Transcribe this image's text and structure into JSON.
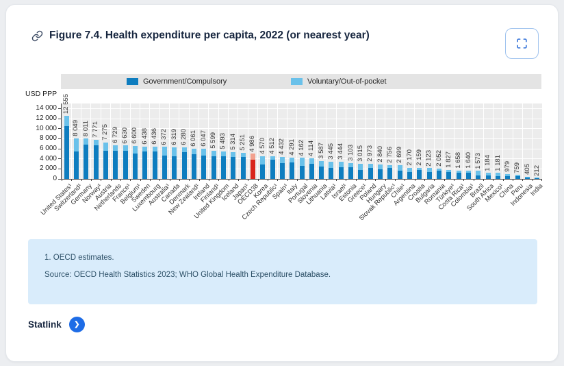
{
  "page": {
    "title": "Figure 7.4. Health expenditure per capita, 2022 (or nearest year)",
    "statlink_label": "Statlink",
    "notes": [
      "1. OECD estimates.",
      "Source: OECD Health Statistics 2023; WHO Global Health Expenditure Database."
    ]
  },
  "chart_data": {
    "type": "bar",
    "stacked": true,
    "title": "Health expenditure per capita, 2022 (or nearest year)",
    "unit_label": "USD PPP",
    "xlabel": "",
    "ylabel": "USD PPP",
    "legend_position": "top",
    "grid": true,
    "ylim": [
      0,
      15000
    ],
    "yticks": [
      0,
      2000,
      4000,
      6000,
      8000,
      10000,
      12000,
      14000
    ],
    "ytick_labels": [
      "0",
      "2 000",
      "4 000",
      "6 000",
      "8 000",
      "10 000",
      "12 000",
      "14 000"
    ],
    "categories": [
      "United States¹",
      "Switzerland¹",
      "Germany",
      "Norway¹",
      "Austria",
      "Netherlands",
      "France¹",
      "Belgium¹",
      "Sweden",
      "Luxembourg",
      "Australia¹",
      "Canada",
      "Denmark",
      "New Zealand¹",
      "Ireland",
      "Finland¹",
      "United Kingdom",
      "Iceland",
      "Japan¹",
      "OECD38",
      "Korea",
      "Czech Republic¹",
      "Spain¹",
      "Italy",
      "Portugal",
      "Slovenia",
      "Lithuania",
      "Latvia¹",
      "Israel¹",
      "Estonia",
      "Greece¹",
      "Poland",
      "Hungary",
      "Slovak Republic¹",
      "Chile¹",
      "Argentina",
      "Croatia",
      "Bulgaria",
      "Romania",
      "Türkiye¹",
      "Costa Rica¹",
      "Colombia¹",
      "Brazil",
      "South Africa",
      "Mexico¹",
      "China",
      "Peru",
      "Indonesia",
      "India"
    ],
    "totals": [
      12555,
      8049,
      8011,
      7771,
      7275,
      6729,
      6630,
      6600,
      6438,
      6436,
      6372,
      6319,
      6280,
      6061,
      6047,
      5599,
      5493,
      5314,
      5251,
      4986,
      4570,
      4512,
      4432,
      4291,
      4162,
      4114,
      3587,
      3445,
      3444,
      3103,
      3015,
      2973,
      2840,
      2756,
      2699,
      2170,
      2159,
      2123,
      2052,
      1827,
      1658,
      1640,
      1573,
      1184,
      1181,
      979,
      759,
      405,
      212
    ],
    "total_labels": [
      "12 555",
      "8 049",
      "8 011",
      "7 771",
      "7 275",
      "6 729",
      "6 630",
      "6 600",
      "6 438",
      "6 436",
      "6 372",
      "6 319",
      "6 280",
      "6 061",
      "6 047",
      "5 599",
      "5 493",
      "5 314",
      "5 251",
      "4 986",
      "4 570",
      "4 512",
      "4 432",
      "4 291",
      "4 162",
      "4 114",
      "3 587",
      "3 445",
      "3 444",
      "3 103",
      "3 015",
      "2 973",
      "2 840",
      "2 756",
      "2 699",
      "2 170",
      "2 159",
      "2 123",
      "2 052",
      "1 827",
      "1 658",
      "1 640",
      "1 573",
      "1 184",
      "1 181",
      "979",
      "759",
      "405",
      "212"
    ],
    "series": [
      {
        "name": "Government/Compulsory",
        "values": [
          10546,
          5393,
          6809,
          6683,
          5602,
          5652,
          5636,
          5082,
          5472,
          5471,
          4652,
          4550,
          5275,
          4849,
          4656,
          4479,
          4504,
          4411,
          4411,
          3789,
          2879,
          3790,
          3147,
          3261,
          2622,
          3003,
          2439,
          2205,
          2342,
          2358,
          1839,
          2141,
          1903,
          2150,
          1700,
          1345,
          1792,
          1316,
          1642,
          1425,
          1194,
          1246,
          708,
          651,
          591,
          548,
          493,
          243,
          85
        ]
      },
      {
        "name": "Voluntary/Out-of-pocket",
        "values": [
          2009,
          2656,
          1202,
          1088,
          1673,
          1077,
          994,
          1518,
          966,
          965,
          1720,
          1769,
          1005,
          1212,
          1391,
          1120,
          989,
          903,
          840,
          1197,
          1691,
          722,
          1285,
          1030,
          1540,
          1111,
          1148,
          1240,
          1102,
          745,
          1176,
          832,
          937,
          606,
          999,
          825,
          367,
          807,
          410,
          402,
          464,
          394,
          865,
          533,
          590,
          431,
          266,
          162,
          127
        ]
      }
    ],
    "highlight_index": 19,
    "highlight_category": "OECD38",
    "colors": {
      "government": "#0e7dbf",
      "voluntary": "#6ac1ea",
      "highlight_government": "#d8251c",
      "highlight_voluntary": "#f2a18e",
      "plot_background": "#ececec",
      "legend_band": "#e4e4e4",
      "title_text": "#17263f",
      "note_background": "#d9ecfb",
      "statlink_blue": "#1e6ce6"
    }
  }
}
